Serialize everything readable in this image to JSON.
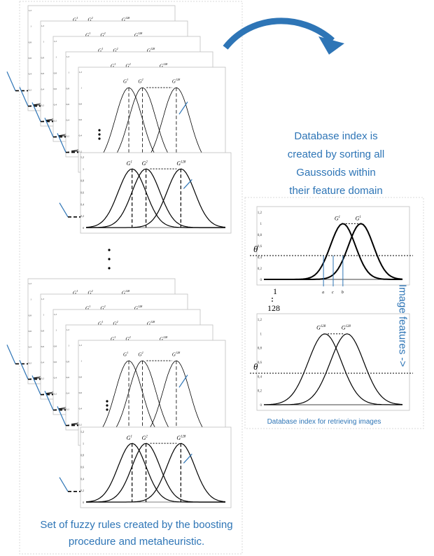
{
  "captions": {
    "left": [
      "Set of fuzzy rules created by the boosting",
      "procedure and metaheuristic."
    ],
    "right": [
      "Database index is",
      "created by sorting all",
      "Gaussoids within",
      "their feature domain"
    ],
    "right_vertical": "Image features ->",
    "bottom": "Database index for retrieving images"
  },
  "theta": "θ",
  "index_gap": {
    "first": "1",
    "last": "128"
  },
  "y_ticks": [
    "1,2",
    "1",
    "0,8",
    "0,6",
    "0,4",
    "0,2",
    "0"
  ],
  "rule_labels": {
    "g1": "G",
    "g2": "G",
    "g128": "G"
  },
  "sup": {
    "s1": "1",
    "s2": "2",
    "s128": "128"
  },
  "index_panel_top": {
    "gauss_a": "G",
    "gauss_a_sup": "1",
    "gauss_a_sub": "3",
    "gauss_b": "G",
    "gauss_b_sup": "1",
    "gauss_b_sub": "1",
    "x_labels": [
      "a",
      "c",
      "b"
    ]
  },
  "index_panel_bottom": {
    "gauss_a": "G",
    "gauss_a_sup": "128",
    "gauss_a_sub": "1",
    "gauss_b": "G",
    "gauss_b_sup": "128",
    "gauss_b_sub": "7"
  },
  "colors": {
    "accent": "#2e75b6",
    "curve": "#000000",
    "frame": "#bfbfbf"
  }
}
